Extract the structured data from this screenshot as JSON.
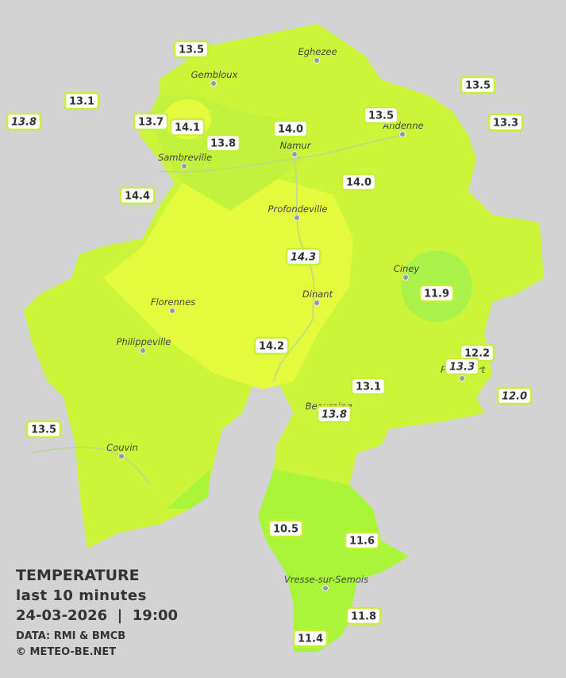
{
  "title": "TEMPERATURE",
  "subtitle": "last 10 minutes",
  "datetime": "24-03-2026  |  19:00",
  "source": "DATA: RMI & BMCB",
  "credit": "© METEO-BE.NET",
  "cities": [
    {
      "name": "Eghezee"
    },
    {
      "name": "Gembloux"
    },
    {
      "name": "Andenne"
    },
    {
      "name": "Namur"
    },
    {
      "name": "Sambreville"
    },
    {
      "name": "Profondeville"
    },
    {
      "name": "Ciney"
    },
    {
      "name": "Dinant"
    },
    {
      "name": "Florennes"
    },
    {
      "name": "Philippeville"
    },
    {
      "name": "Rochefort"
    },
    {
      "name": "Beauraing"
    },
    {
      "name": "Couvin"
    },
    {
      "name": "Vresse-sur-Semois"
    }
  ],
  "stations": [
    {
      "label": "13.5",
      "italic": false
    },
    {
      "label": "13.5",
      "italic": false
    },
    {
      "label": "13.1",
      "italic": false
    },
    {
      "label": "13.8",
      "italic": true
    },
    {
      "label": "13.7",
      "italic": false
    },
    {
      "label": "14.1",
      "italic": false
    },
    {
      "label": "14.0",
      "italic": false
    },
    {
      "label": "13.5",
      "italic": false
    },
    {
      "label": "13.3",
      "italic": false
    },
    {
      "label": "13.8",
      "italic": false
    },
    {
      "label": "14.0",
      "italic": false
    },
    {
      "label": "14.4",
      "italic": false
    },
    {
      "label": "14.3",
      "italic": true
    },
    {
      "label": "11.9",
      "italic": false
    },
    {
      "label": "14.2",
      "italic": false
    },
    {
      "label": "12.2",
      "italic": false
    },
    {
      "label": "13.3",
      "italic": true
    },
    {
      "label": "12.0",
      "italic": true
    },
    {
      "label": "13.1",
      "italic": false
    },
    {
      "label": "13.8",
      "italic": true
    },
    {
      "label": "13.5",
      "italic": false
    },
    {
      "label": "10.5",
      "italic": false
    },
    {
      "label": "11.6",
      "italic": false
    },
    {
      "label": "11.8",
      "italic": false
    },
    {
      "label": "11.4",
      "italic": false
    }
  ]
}
